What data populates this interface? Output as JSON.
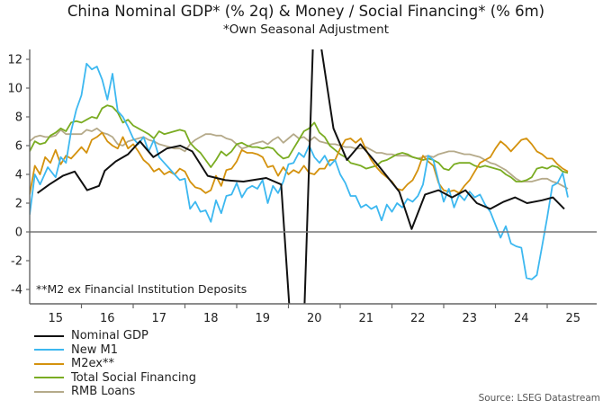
{
  "chart_data": {
    "type": "line",
    "title": "China Nominal GDP* (% 2q) & Money / Social Financing* (% 6m)",
    "subtitle": "*Own Seasonal Adjustment",
    "footnote": "**M2 ex Financial Institution Deposits",
    "source": "Source: LSEG Datastream",
    "xlabel": "",
    "ylabel": "",
    "xlim": [
      2014.7,
      2025.6
    ],
    "ylim": [
      -5,
      13
    ],
    "y_ticks": [
      -4,
      -2,
      0,
      2,
      4,
      6,
      8,
      10,
      12
    ],
    "x_tick_labels": [
      "15",
      "16",
      "17",
      "18",
      "19",
      "20",
      "21",
      "22",
      "23",
      "24",
      "25"
    ],
    "grid": false,
    "zero_line": true,
    "legend_position": "bottom-left",
    "series": [
      {
        "name": "Nominal GDP",
        "color": "#111111",
        "x": [
          2015.15,
          2015.38,
          2015.64,
          2015.87,
          2016.11,
          2016.34,
          2016.45,
          2016.66,
          2016.9,
          2017.13,
          2017.39,
          2017.65,
          2017.91,
          2018.14,
          2018.44,
          2018.78,
          2019.13,
          2019.57,
          2019.86,
          2020.04,
          2020.3,
          2020.5,
          2020.87,
          2021.13,
          2021.39,
          2021.74,
          2022.14,
          2022.38,
          2022.64,
          2022.9,
          2023.16,
          2023.42,
          2023.64,
          2023.9,
          2024.16,
          2024.38,
          2024.61,
          2024.9,
          2025.11,
          2025.33
        ],
        "values": [
          2.7,
          3.3,
          3.9,
          4.2,
          2.9,
          3.2,
          4.25,
          4.9,
          5.4,
          6.3,
          5.2,
          5.8,
          6.0,
          5.6,
          3.9,
          3.6,
          3.5,
          3.75,
          3.3,
          -6.4,
          -6.4,
          16.0,
          7.2,
          5.0,
          6.1,
          4.6,
          2.8,
          0.2,
          2.6,
          2.9,
          2.4,
          2.9,
          2.0,
          1.6,
          2.1,
          2.4,
          2.0,
          2.2,
          2.4,
          1.6
        ]
      },
      {
        "name": "New M1",
        "color": "#3db8f0",
        "x": [
          2015.0,
          2015.1,
          2015.2,
          2015.35,
          2015.5,
          2015.6,
          2015.7,
          2015.8,
          2015.9,
          2016.0,
          2016.1,
          2016.2,
          2016.3,
          2016.4,
          2016.5,
          2016.6,
          2016.7,
          2016.8,
          2016.9,
          2017.0,
          2017.1,
          2017.2,
          2017.3,
          2017.4,
          2017.5,
          2017.6,
          2017.7,
          2017.8,
          2017.9,
          2018.0,
          2018.1,
          2018.2,
          2018.3,
          2018.4,
          2018.5,
          2018.6,
          2018.7,
          2018.8,
          2018.9,
          2019.0,
          2019.1,
          2019.2,
          2019.3,
          2019.4,
          2019.5,
          2019.6,
          2019.7,
          2019.8,
          2019.9,
          2020.0,
          2020.1,
          2020.2,
          2020.3,
          2020.4,
          2020.5,
          2020.6,
          2020.7,
          2020.8,
          2020.9,
          2021.0,
          2021.1,
          2021.2,
          2021.3,
          2021.4,
          2021.5,
          2021.6,
          2021.7,
          2021.8,
          2021.9,
          2022.0,
          2022.1,
          2022.2,
          2022.3,
          2022.4,
          2022.5,
          2022.6,
          2022.7,
          2022.8,
          2022.9,
          2023.0,
          2023.1,
          2023.2,
          2023.3,
          2023.4,
          2023.5,
          2023.6,
          2023.7,
          2023.8,
          2023.9,
          2024.0,
          2024.1,
          2024.2,
          2024.3,
          2024.4,
          2024.5,
          2024.6,
          2024.7,
          2024.8,
          2024.9,
          2025.0,
          2025.1,
          2025.2,
          2025.3,
          2025.4
        ],
        "values": [
          1.2,
          4.0,
          3.3,
          4.5,
          3.8,
          5.2,
          4.8,
          7.0,
          8.5,
          9.5,
          11.7,
          11.3,
          11.5,
          10.6,
          9.2,
          11.0,
          8.4,
          8.0,
          7.3,
          6.5,
          6.1,
          6.6,
          5.6,
          6.4,
          5.2,
          4.8,
          4.4,
          4.0,
          3.6,
          3.7,
          1.6,
          2.1,
          1.4,
          1.5,
          0.7,
          2.2,
          1.3,
          2.5,
          2.6,
          3.4,
          2.4,
          3.0,
          3.2,
          3.0,
          3.6,
          2.0,
          3.2,
          2.7,
          3.5,
          4.7,
          4.8,
          5.5,
          5.2,
          6.0,
          5.2,
          4.8,
          5.3,
          4.6,
          5.0,
          4.0,
          3.4,
          2.5,
          2.5,
          1.7,
          1.9,
          1.6,
          1.8,
          0.8,
          1.9,
          1.4,
          2.0,
          1.7,
          2.3,
          2.1,
          2.5,
          3.3,
          5.3,
          5.0,
          3.5,
          2.1,
          3.0,
          1.7,
          2.6,
          2.2,
          2.8,
          2.4,
          2.6,
          1.9,
          1.4,
          0.5,
          -0.4,
          0.4,
          -0.8,
          -1.0,
          -1.1,
          -3.2,
          -3.3,
          -3.0,
          -1.0,
          1.0,
          3.2,
          3.4,
          4.1,
          2.4
        ]
      },
      {
        "name": "M2ex**",
        "color": "#d4920e",
        "x": [
          2015.0,
          2015.1,
          2015.2,
          2015.3,
          2015.4,
          2015.5,
          2015.6,
          2015.7,
          2015.8,
          2015.9,
          2016.0,
          2016.1,
          2016.2,
          2016.3,
          2016.4,
          2016.5,
          2016.6,
          2016.7,
          2016.8,
          2016.9,
          2017.0,
          2017.1,
          2017.2,
          2017.3,
          2017.4,
          2017.5,
          2017.6,
          2017.7,
          2017.8,
          2017.9,
          2018.0,
          2018.1,
          2018.2,
          2018.3,
          2018.4,
          2018.5,
          2018.6,
          2018.7,
          2018.8,
          2018.9,
          2019.0,
          2019.1,
          2019.2,
          2019.3,
          2019.4,
          2019.5,
          2019.6,
          2019.7,
          2019.8,
          2019.9,
          2020.0,
          2020.1,
          2020.2,
          2020.3,
          2020.4,
          2020.5,
          2020.6,
          2020.7,
          2020.8,
          2020.9,
          2021.0,
          2021.1,
          2021.2,
          2021.3,
          2021.4,
          2021.5,
          2021.6,
          2021.7,
          2021.8,
          2021.9,
          2022.0,
          2022.1,
          2022.2,
          2022.3,
          2022.4,
          2022.5,
          2022.6,
          2022.7,
          2022.8,
          2022.9,
          2023.0,
          2023.1,
          2023.2,
          2023.3,
          2023.4,
          2023.5,
          2023.6,
          2023.7,
          2023.8,
          2023.9,
          2024.0,
          2024.1,
          2024.2,
          2024.3,
          2024.4,
          2024.5,
          2024.6,
          2024.7,
          2024.8,
          2024.9,
          2025.0,
          2025.1,
          2025.2,
          2025.3,
          2025.4
        ],
        "values": [
          2.6,
          4.6,
          4.0,
          5.2,
          4.8,
          5.7,
          4.7,
          5.3,
          5.1,
          5.5,
          5.9,
          5.5,
          6.4,
          6.6,
          6.9,
          6.3,
          6.0,
          5.8,
          6.6,
          5.8,
          6.1,
          5.6,
          5.0,
          4.7,
          4.2,
          4.4,
          4.0,
          4.2,
          4.0,
          4.4,
          4.2,
          3.5,
          3.1,
          3.0,
          2.7,
          2.9,
          3.9,
          3.2,
          4.3,
          4.4,
          4.9,
          5.7,
          5.5,
          5.5,
          5.4,
          5.2,
          4.5,
          4.6,
          3.9,
          4.5,
          4.0,
          4.3,
          4.1,
          4.6,
          4.1,
          4.0,
          4.4,
          4.4,
          5.0,
          5.0,
          5.8,
          6.4,
          6.5,
          6.2,
          6.5,
          5.7,
          5.0,
          4.5,
          4.1,
          3.8,
          3.5,
          3.0,
          2.9,
          3.3,
          3.6,
          4.3,
          5.3,
          4.9,
          4.6,
          3.4,
          2.9,
          2.8,
          2.9,
          2.7,
          3.2,
          3.6,
          4.2,
          4.8,
          5.0,
          5.2,
          5.8,
          6.3,
          6.0,
          5.6,
          6.0,
          6.4,
          6.5,
          6.1,
          5.6,
          5.4,
          5.1,
          5.1,
          4.7,
          4.4,
          4.2
        ]
      },
      {
        "name": "Total Social Financing",
        "color": "#7aac22",
        "x": [
          2015.0,
          2015.1,
          2015.2,
          2015.3,
          2015.4,
          2015.5,
          2015.6,
          2015.7,
          2015.8,
          2015.9,
          2016.0,
          2016.1,
          2016.2,
          2016.3,
          2016.4,
          2016.5,
          2016.6,
          2016.7,
          2016.8,
          2016.9,
          2017.0,
          2017.1,
          2017.2,
          2017.3,
          2017.4,
          2017.5,
          2017.6,
          2017.7,
          2017.8,
          2017.9,
          2018.0,
          2018.1,
          2018.2,
          2018.3,
          2018.4,
          2018.5,
          2018.6,
          2018.7,
          2018.8,
          2018.9,
          2019.0,
          2019.1,
          2019.2,
          2019.3,
          2019.4,
          2019.5,
          2019.6,
          2019.7,
          2019.8,
          2019.9,
          2020.0,
          2020.1,
          2020.2,
          2020.3,
          2020.4,
          2020.5,
          2020.6,
          2020.7,
          2020.8,
          2020.9,
          2021.0,
          2021.1,
          2021.2,
          2021.3,
          2021.4,
          2021.5,
          2021.6,
          2021.7,
          2021.8,
          2021.9,
          2022.0,
          2022.1,
          2022.2,
          2022.3,
          2022.4,
          2022.5,
          2022.6,
          2022.7,
          2022.8,
          2022.9,
          2023.0,
          2023.1,
          2023.2,
          2023.3,
          2023.4,
          2023.5,
          2023.6,
          2023.7,
          2023.8,
          2023.9,
          2024.0,
          2024.1,
          2024.2,
          2024.3,
          2024.4,
          2024.5,
          2024.6,
          2024.7,
          2024.8,
          2024.9,
          2025.0,
          2025.1,
          2025.2,
          2025.3,
          2025.4
        ],
        "values": [
          5.6,
          6.3,
          6.1,
          6.2,
          6.7,
          6.9,
          7.2,
          7.0,
          7.6,
          7.7,
          7.6,
          7.8,
          8.0,
          7.9,
          8.6,
          8.8,
          8.7,
          8.3,
          7.6,
          7.8,
          7.4,
          7.2,
          7.0,
          6.8,
          6.5,
          7.0,
          6.8,
          6.9,
          7.0,
          7.1,
          7.0,
          6.2,
          5.8,
          5.5,
          5.0,
          4.5,
          5.0,
          5.6,
          5.3,
          5.6,
          6.1,
          6.2,
          6.0,
          5.9,
          5.9,
          5.8,
          5.9,
          5.8,
          5.4,
          5.1,
          5.2,
          5.8,
          6.4,
          7.0,
          7.2,
          7.6,
          6.9,
          6.6,
          6.0,
          5.7,
          5.4,
          5.2,
          4.8,
          4.7,
          4.6,
          4.4,
          4.5,
          4.6,
          4.9,
          5.0,
          5.2,
          5.4,
          5.5,
          5.4,
          5.2,
          5.1,
          5.0,
          5.1,
          5.0,
          4.8,
          4.4,
          4.3,
          4.7,
          4.8,
          4.8,
          4.8,
          4.6,
          4.5,
          4.6,
          4.5,
          4.4,
          4.3,
          4.0,
          3.8,
          3.5,
          3.5,
          3.6,
          3.8,
          4.4,
          4.5,
          4.4,
          4.6,
          4.5,
          4.2,
          4.1
        ]
      },
      {
        "name": "RMB Loans",
        "color": "#b5aa8a",
        "x": [
          2015.0,
          2015.1,
          2015.2,
          2015.3,
          2015.4,
          2015.5,
          2015.6,
          2015.7,
          2015.8,
          2015.9,
          2016.0,
          2016.1,
          2016.2,
          2016.3,
          2016.4,
          2016.5,
          2016.6,
          2016.7,
          2016.8,
          2016.9,
          2017.0,
          2017.1,
          2017.2,
          2017.3,
          2017.4,
          2017.5,
          2017.6,
          2017.7,
          2017.8,
          2017.9,
          2018.0,
          2018.1,
          2018.2,
          2018.3,
          2018.4,
          2018.5,
          2018.6,
          2018.7,
          2018.8,
          2018.9,
          2019.0,
          2019.1,
          2019.2,
          2019.3,
          2019.4,
          2019.5,
          2019.6,
          2019.7,
          2019.8,
          2019.9,
          2020.0,
          2020.1,
          2020.2,
          2020.3,
          2020.4,
          2020.5,
          2020.6,
          2020.7,
          2020.8,
          2020.9,
          2021.0,
          2021.1,
          2021.2,
          2021.3,
          2021.4,
          2021.5,
          2021.6,
          2021.7,
          2021.8,
          2021.9,
          2022.0,
          2022.1,
          2022.2,
          2022.3,
          2022.4,
          2022.5,
          2022.6,
          2022.7,
          2022.8,
          2022.9,
          2023.0,
          2023.1,
          2023.2,
          2023.3,
          2023.4,
          2023.5,
          2023.6,
          2023.7,
          2023.8,
          2023.9,
          2024.0,
          2024.1,
          2024.2,
          2024.3,
          2024.4,
          2024.5,
          2024.6,
          2024.7,
          2024.8,
          2024.9,
          2025.0,
          2025.1,
          2025.2,
          2025.3,
          2025.4
        ],
        "values": [
          6.3,
          6.6,
          6.7,
          6.6,
          6.6,
          6.7,
          7.1,
          6.8,
          6.8,
          6.8,
          6.8,
          7.1,
          7.0,
          7.2,
          6.9,
          6.8,
          6.6,
          6.1,
          6.0,
          6.3,
          6.4,
          6.5,
          6.6,
          6.4,
          6.3,
          6.1,
          6.0,
          5.9,
          5.8,
          5.8,
          5.6,
          6.1,
          6.4,
          6.6,
          6.8,
          6.8,
          6.7,
          6.7,
          6.5,
          6.4,
          6.1,
          5.8,
          5.9,
          6.1,
          6.2,
          6.3,
          6.1,
          6.4,
          6.6,
          6.2,
          6.5,
          6.8,
          6.5,
          6.6,
          6.3,
          6.6,
          6.3,
          6.2,
          6.1,
          6.1,
          6.0,
          5.9,
          5.9,
          5.8,
          5.8,
          5.9,
          5.7,
          5.5,
          5.5,
          5.4,
          5.4,
          5.3,
          5.3,
          5.3,
          5.2,
          5.1,
          5.2,
          5.3,
          5.2,
          5.4,
          5.5,
          5.6,
          5.6,
          5.5,
          5.4,
          5.4,
          5.3,
          5.2,
          5.0,
          4.8,
          4.7,
          4.5,
          4.3,
          4.0,
          3.7,
          3.5,
          3.5,
          3.5,
          3.6,
          3.7,
          3.7,
          3.5,
          3.4,
          3.2,
          3.0
        ]
      }
    ]
  }
}
